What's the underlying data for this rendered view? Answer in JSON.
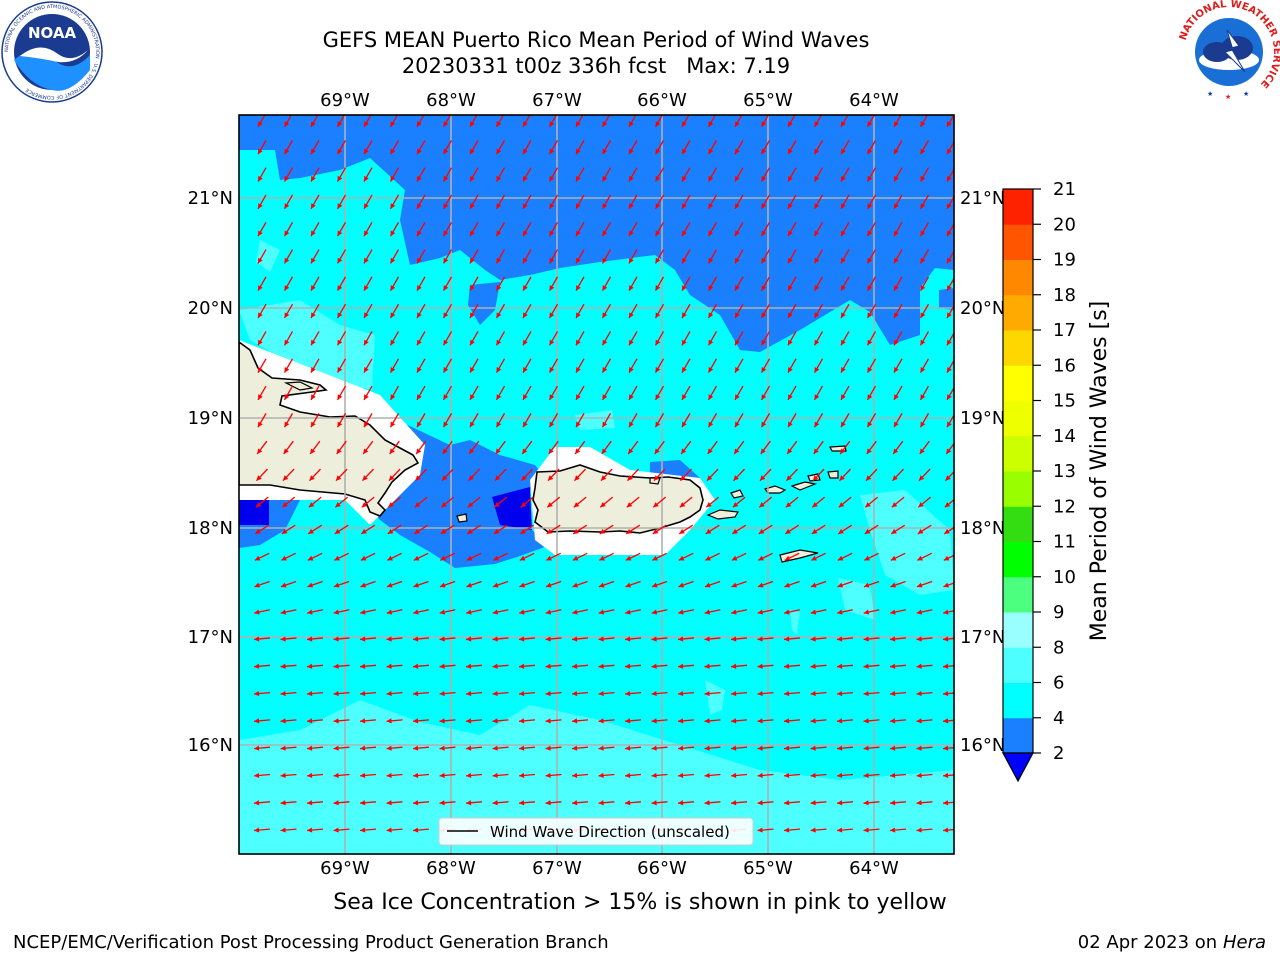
{
  "header": {
    "title_line1": "GEFS MEAN Puerto Rico Mean Period of Wind Waves",
    "title_line2": "20230331 t00z 336h fcst   Max: 7.19"
  },
  "logos": {
    "left_text": "NOAA",
    "left_ring_text": "NATIONAL OCEANIC AND ATMOSPHERIC ADMINISTRATION · U.S. DEPARTMENT OF COMMERCE",
    "right_ring_text": "NATIONAL WEATHER SERVICE"
  },
  "map": {
    "lon_labels": [
      "69°W",
      "68°W",
      "67°W",
      "66°W",
      "65°W",
      "64°W"
    ],
    "lat_labels": [
      "21°N",
      "20°N",
      "19°N",
      "18°N",
      "17°N",
      "16°N"
    ],
    "legend_label": "Wind Wave Direction (unscaled)",
    "colors": {
      "ocean_low": "#1a80ff",
      "ocean_mid": "#00ffff",
      "ocean_high": "#4dffff",
      "land": "#eeeedd",
      "arrow": "#ff0000"
    }
  },
  "colorbar": {
    "title": "Mean Period of Wind Waves [s]",
    "ticks": [
      "2",
      "4",
      "6",
      "8",
      "9",
      "10",
      "11",
      "12",
      "13",
      "14",
      "15",
      "16",
      "17",
      "18",
      "19",
      "20",
      "21"
    ],
    "colors": [
      "#1a80ff",
      "#00ffff",
      "#4dffff",
      "#99ffff",
      "#4cff7f",
      "#00ff00",
      "#33dd11",
      "#99ff00",
      "#ccff00",
      "#eeff00",
      "#ffff00",
      "#ffd700",
      "#ffaa00",
      "#ff8800",
      "#ff5500",
      "#ff2200"
    ],
    "extend_color": "#0000ff"
  },
  "caption": "Sea Ice Concentration > 15% is shown in pink to yellow",
  "footer": {
    "left": "NCEP/EMC/Verification Post Processing Product Generation Branch",
    "right_prefix": "02 Apr 2023 on ",
    "right_host": "Hera"
  }
}
